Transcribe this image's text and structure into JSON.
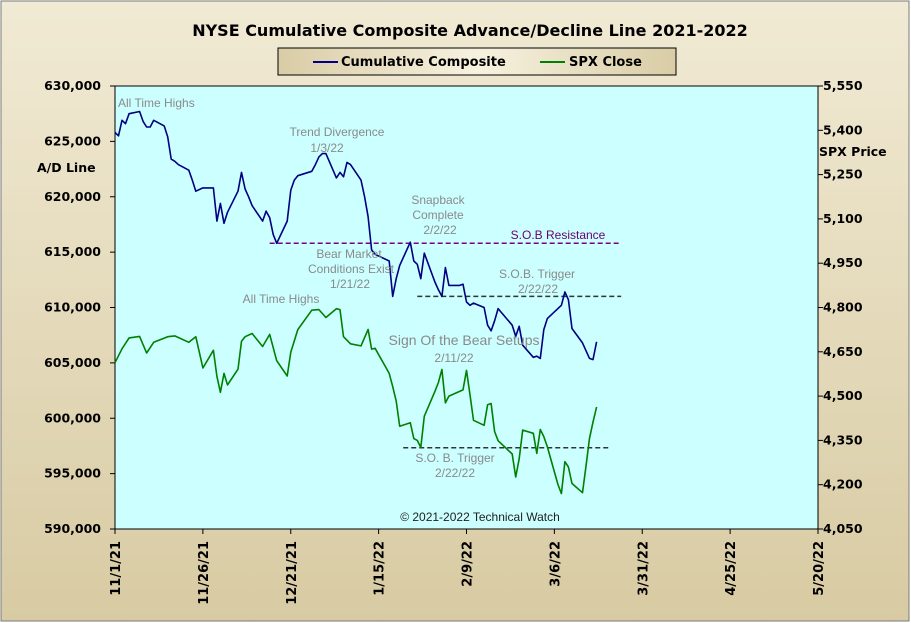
{
  "colors": {
    "outer_bg": "#e5dcc0",
    "plot_bg": "#ccffff",
    "composite_line": "#000080",
    "spx_line": "#008000",
    "resistance_line": "#800080",
    "trigger_line": "#333333"
  },
  "chart_data": {
    "type": "line",
    "title": "NYSE Cumulative  Composite Advance/Decline Line 2021-2022",
    "copyright": "© 2021-2022  Technical Watch",
    "legend": {
      "placement": "top-center"
    },
    "grid": false,
    "x_axis": {
      "kind": "date",
      "range": [
        "2021-11-01",
        "2022-05-20"
      ],
      "tick_labels": [
        "11/1/21",
        "11/26/21",
        "12/21/21",
        "1/15/22",
        "2/9/22",
        "3/6/22",
        "3/31/22",
        "4/25/22",
        "5/20/22"
      ],
      "tick_dates": [
        "2021-11-01",
        "2021-11-26",
        "2021-12-21",
        "2022-01-15",
        "2022-02-09",
        "2022-03-06",
        "2022-03-31",
        "2022-04-25",
        "2022-05-20"
      ]
    },
    "y_left": {
      "label": "A/D Line",
      "range": [
        590000,
        630000
      ],
      "ticks": [
        630000,
        625000,
        620000,
        615000,
        610000,
        605000,
        600000,
        595000,
        590000
      ],
      "tick_labels": [
        "630,000",
        "625,000",
        "620,000",
        "615,000",
        "610,000",
        "605,000",
        "600,000",
        "595,000",
        "590,000"
      ]
    },
    "y_right": {
      "label": "SPX Price",
      "range": [
        4050,
        5550
      ],
      "ticks": [
        5550,
        5400,
        5250,
        5100,
        4950,
        4800,
        4650,
        4500,
        4350,
        4200,
        4050
      ],
      "tick_labels": [
        "5,550",
        "5,400",
        "5,250",
        "5,100",
        "4,950",
        "4,800",
        "4,650",
        "4,500",
        "4,350",
        "4,200",
        "4,050"
      ]
    },
    "series": [
      {
        "name": "Cumulative Composite",
        "axis": "left",
        "x": [
          "2021-11-01",
          "2021-11-02",
          "2021-11-03",
          "2021-11-04",
          "2021-11-05",
          "2021-11-08",
          "2021-11-09",
          "2021-11-10",
          "2021-11-11",
          "2021-11-12",
          "2021-11-15",
          "2021-11-16",
          "2021-11-17",
          "2021-11-18",
          "2021-11-19",
          "2021-11-22",
          "2021-11-23",
          "2021-11-24",
          "2021-11-26",
          "2021-11-29",
          "2021-11-30",
          "2021-12-01",
          "2021-12-02",
          "2021-12-03",
          "2021-12-06",
          "2021-12-07",
          "2021-12-08",
          "2021-12-09",
          "2021-12-10",
          "2021-12-13",
          "2021-12-14",
          "2021-12-15",
          "2021-12-16",
          "2021-12-17",
          "2021-12-20",
          "2021-12-21",
          "2021-12-22",
          "2021-12-23",
          "2021-12-27",
          "2021-12-28",
          "2021-12-29",
          "2021-12-30",
          "2021-12-31",
          "2022-01-03",
          "2022-01-04",
          "2022-01-05",
          "2022-01-06",
          "2022-01-07",
          "2022-01-10",
          "2022-01-11",
          "2022-01-12",
          "2022-01-13",
          "2022-01-14",
          "2022-01-18",
          "2022-01-19",
          "2022-01-20",
          "2022-01-21",
          "2022-01-24",
          "2022-01-25",
          "2022-01-26",
          "2022-01-27",
          "2022-01-28",
          "2022-01-31",
          "2022-02-01",
          "2022-02-02",
          "2022-02-03",
          "2022-02-04",
          "2022-02-07",
          "2022-02-08",
          "2022-02-09",
          "2022-02-10",
          "2022-02-11",
          "2022-02-14",
          "2022-02-15",
          "2022-02-16",
          "2022-02-17",
          "2022-02-18",
          "2022-02-22",
          "2022-02-23",
          "2022-02-24",
          "2022-02-25",
          "2022-02-28",
          "2022-03-01",
          "2022-03-02",
          "2022-03-03",
          "2022-03-04",
          "2022-03-07",
          "2022-03-08",
          "2022-03-09",
          "2022-03-10",
          "2022-03-11",
          "2022-03-14",
          "2022-03-15",
          "2022-03-16",
          "2022-03-17",
          "2022-03-18"
        ],
        "values": [
          625800,
          625500,
          626900,
          626600,
          627500,
          627700,
          626800,
          626300,
          626300,
          626900,
          626400,
          625400,
          623400,
          623200,
          622900,
          622400,
          621500,
          620500,
          620800,
          620800,
          617800,
          619400,
          617600,
          618600,
          620500,
          622200,
          620700,
          620000,
          619200,
          617800,
          618700,
          618100,
          616600,
          615800,
          617800,
          620600,
          621500,
          621900,
          622300,
          622900,
          623600,
          623900,
          623900,
          621700,
          622200,
          621800,
          623100,
          622900,
          621500,
          620000,
          618200,
          615200,
          614800,
          614200,
          611000,
          612600,
          613800,
          615900,
          614200,
          613900,
          612600,
          614900,
          612300,
          611600,
          611000,
          613600,
          612000,
          612000,
          612100,
          610500,
          610200,
          610400,
          610000,
          608400,
          607900,
          608800,
          609900,
          608400,
          607400,
          608300,
          606600,
          605500,
          605600,
          605400,
          608000,
          609000,
          609900,
          610200,
          611400,
          610700,
          608100,
          606800,
          606100,
          605400,
          605300,
          606900
        ],
        "note": "values shown to end of plotted data"
      },
      {
        "name": "SPX Close",
        "axis": "right",
        "x": [
          "2021-11-01",
          "2021-11-03",
          "2021-11-05",
          "2021-11-08",
          "2021-11-10",
          "2021-11-12",
          "2021-11-16",
          "2021-11-18",
          "2021-11-22",
          "2021-11-24",
          "2021-11-26",
          "2021-11-29",
          "2021-11-30",
          "2021-12-01",
          "2021-12-02",
          "2021-12-03",
          "2021-12-06",
          "2021-12-07",
          "2021-12-08",
          "2021-12-10",
          "2021-12-13",
          "2021-12-15",
          "2021-12-17",
          "2021-12-20",
          "2021-12-21",
          "2021-12-23",
          "2021-12-27",
          "2021-12-29",
          "2021-12-31",
          "2022-01-03",
          "2022-01-04",
          "2022-01-05",
          "2022-01-07",
          "2022-01-10",
          "2022-01-12",
          "2022-01-13",
          "2022-01-14",
          "2022-01-18",
          "2022-01-19",
          "2022-01-20",
          "2022-01-21",
          "2022-01-24",
          "2022-01-25",
          "2022-01-26",
          "2022-01-27",
          "2022-01-28",
          "2022-01-31",
          "2022-02-01",
          "2022-02-02",
          "2022-02-03",
          "2022-02-04",
          "2022-02-08",
          "2022-02-09",
          "2022-02-10",
          "2022-02-11",
          "2022-02-14",
          "2022-02-15",
          "2022-02-16",
          "2022-02-17",
          "2022-02-18",
          "2022-02-22",
          "2022-02-23",
          "2022-02-24",
          "2022-02-25",
          "2022-02-28",
          "2022-03-01",
          "2022-03-02",
          "2022-03-03",
          "2022-03-04",
          "2022-03-07",
          "2022-03-08",
          "2022-03-09",
          "2022-03-10",
          "2022-03-11",
          "2022-03-14",
          "2022-03-15",
          "2022-03-16",
          "2022-03-17",
          "2022-03-18"
        ],
        "values": [
          4613,
          4660,
          4697,
          4702,
          4646,
          4682,
          4701,
          4704,
          4682,
          4701,
          4595,
          4655,
          4567,
          4513,
          4577,
          4538,
          4591,
          4686,
          4701,
          4712,
          4668,
          4709,
          4620,
          4568,
          4649,
          4725,
          4791,
          4793,
          4766,
          4796,
          4793,
          4701,
          4677,
          4670,
          4726,
          4659,
          4662,
          4577,
          4532,
          4483,
          4398,
          4410,
          4356,
          4350,
          4326,
          4432,
          4516,
          4546,
          4590,
          4477,
          4500,
          4521,
          4587,
          4504,
          4418,
          4401,
          4471,
          4475,
          4380,
          4349,
          4304,
          4226,
          4288,
          4385,
          4374,
          4306,
          4387,
          4363,
          4329,
          4201,
          4170,
          4278,
          4260,
          4204,
          4173,
          4263,
          4357,
          4412,
          4463
        ],
        "note": "values shown to end of plotted data"
      }
    ],
    "reference_lines": [
      {
        "label": "S.O.B Resistance",
        "axis": "left",
        "y": 615800,
        "x_start": "2021-12-15",
        "x_end": "2022-03-25"
      },
      {
        "label": "S.O.B. Trigger 2/22/22",
        "axis": "left",
        "y": 611000,
        "x_start": "2022-01-26",
        "x_end": "2022-03-25"
      },
      {
        "label": "S.O.B. Trigger 2/22/22",
        "axis": "right",
        "y": 4325,
        "x_start": "2022-01-22",
        "x_end": "2022-03-22"
      }
    ],
    "annotations": [
      "All Time Highs",
      "Trend  Divergence",
      "1/3/22",
      "Snapback",
      "Complete",
      "2/2/22",
      "S.O.B Resistance",
      "Bear Market",
      "Conditions  Exist",
      "1/21/22",
      "S.O.B. Trigger",
      "2/22/22",
      "All Time  Highs",
      "Sign Of the Bear Setups",
      "2/11/22",
      "S.O. B. Trigger",
      "2/22/22"
    ]
  }
}
